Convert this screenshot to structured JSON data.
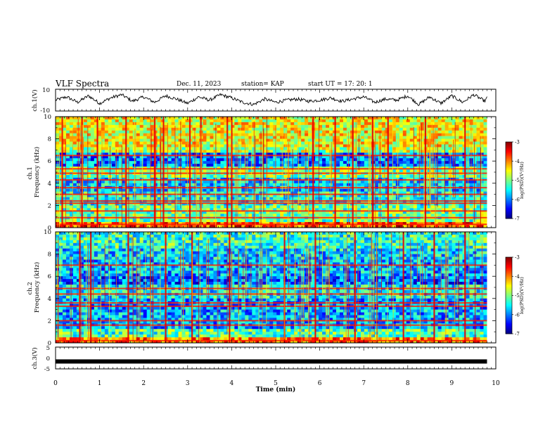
{
  "header": {
    "title": "VLF Spectra",
    "date": "Dec. 11, 2023",
    "station": "station= KAP",
    "start": "start  UT  =   17: 20: 1"
  },
  "chart_data": [
    {
      "type": "line",
      "name": "ch1-waveform",
      "ylabel": "ch.1(V)",
      "ylim": [
        -10,
        10
      ],
      "y_ticks": [
        "10",
        "-10"
      ],
      "xlim": [
        0,
        10
      ],
      "x": [
        0,
        0.25,
        0.5,
        0.75,
        1.0,
        1.25,
        1.5,
        1.75,
        2.0,
        2.25,
        2.5,
        2.75,
        3.0,
        3.25,
        3.5,
        3.75,
        4.0,
        4.25,
        4.5,
        4.75,
        5.0,
        5.25,
        5.5,
        5.75,
        6.0,
        6.25,
        6.5,
        6.75,
        7.0,
        7.25,
        7.5,
        7.75,
        8.0,
        8.25,
        8.5,
        8.75,
        9.0,
        9.25,
        9.5,
        9.75,
        9.8
      ],
      "y": [
        0,
        3,
        -2,
        4,
        -3,
        2,
        5,
        -1,
        3,
        -2,
        4,
        1,
        -3,
        3,
        0,
        5,
        2,
        -2,
        -4,
        1,
        -2,
        0,
        1,
        -1,
        0,
        2,
        -1,
        1,
        3,
        -2,
        1,
        0,
        4,
        -4,
        3,
        -3,
        4,
        -2,
        5,
        -1,
        2
      ]
    },
    {
      "type": "heatmap",
      "name": "ch1-spectrogram",
      "ylabel": "ch.1\nFrequency  (kHz)",
      "xlim": [
        0,
        9.8
      ],
      "ylim": [
        0,
        10
      ],
      "y_ticks": [
        "0",
        "2",
        "4",
        "6",
        "8",
        "10"
      ],
      "colorbar": {
        "label": "log(PSD)(V²/Hz)",
        "range": [
          -7,
          -3
        ],
        "ticks": [
          "-3",
          "-4",
          "-5",
          "-6",
          "-7"
        ]
      },
      "band_lines_khz": [
        0.3,
        0.9,
        1.5,
        2.2,
        2.4,
        3.0,
        3.6,
        4.3,
        4.9,
        5.3,
        6.5
      ],
      "bursts_min": [
        0.15,
        0.6,
        0.95,
        1.6,
        2.25,
        2.45,
        3.05,
        3.3,
        3.9,
        4.0,
        5.85,
        6.35,
        6.75,
        7.2,
        7.55,
        8.4,
        9.3
      ]
    },
    {
      "type": "heatmap",
      "name": "ch2-spectrogram",
      "ylabel": "ch.2\nFrequency  (kHz)",
      "xlim": [
        0,
        9.8
      ],
      "ylim": [
        0,
        10
      ],
      "y_ticks": [
        "0",
        "2",
        "4",
        "6",
        "8",
        "10"
      ],
      "colorbar": {
        "label": "log(PSD)(V²/Hz)",
        "range": [
          -7,
          -3
        ],
        "ticks": [
          "-3",
          "-4",
          "-5",
          "-6",
          "-7"
        ]
      },
      "band_lines_khz": [
        0.2,
        1.6,
        2.0,
        3.3,
        3.6,
        4.4,
        4.9,
        7.0
      ],
      "bursts_min": [
        0.55,
        0.8,
        1.65,
        2.5,
        3.1,
        3.95,
        5.2,
        5.9,
        6.8,
        7.9,
        8.6,
        9.3
      ]
    },
    {
      "type": "line",
      "name": "ch3-signal",
      "ylabel": "ch.3(V)",
      "ylim": [
        -5,
        5
      ],
      "y_ticks": [
        "5",
        "0",
        "-5"
      ],
      "xlim": [
        0,
        10
      ],
      "x": [
        0,
        9.8
      ],
      "y": [
        -1.6,
        -1.6
      ]
    }
  ],
  "x_axis": {
    "label": "Time  (min)",
    "ticks": [
      "0",
      "1",
      "2",
      "3",
      "4",
      "5",
      "6",
      "7",
      "8",
      "9",
      "10"
    ]
  }
}
